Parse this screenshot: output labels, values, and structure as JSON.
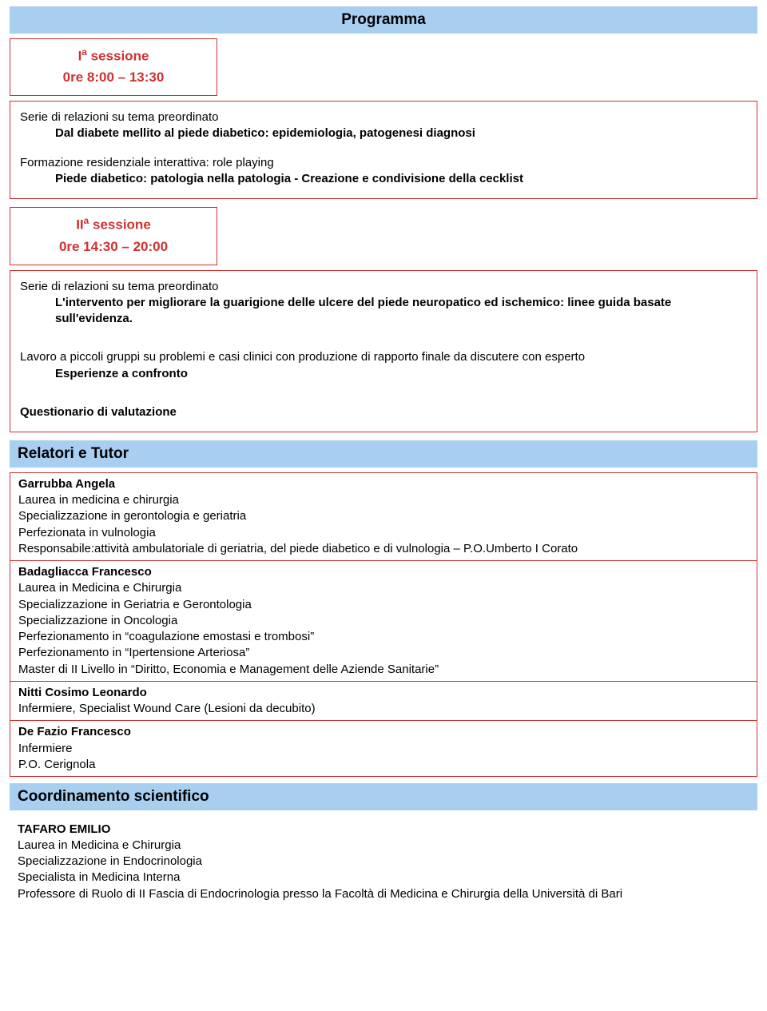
{
  "colors": {
    "header_bg": "#a8cef0",
    "border": "#cf3030",
    "session_text": "#cf3030",
    "body_text": "#000000"
  },
  "page_title": "Programma",
  "session1": {
    "label_html": "I<sup>a</sup> sessione",
    "time": "0re 8:00 – 13:30"
  },
  "box1": {
    "series": "Serie di relazioni su tema preordinato",
    "series_bold": "Dal diabete mellito al piede diabetico: epidemiologia, patogenesi diagnosi",
    "formazione": "Formazione residenziale interattiva: role playing",
    "formazione_bold": "Piede diabetico: patologia nella patologia - Creazione e condivisione della cecklist"
  },
  "session2": {
    "label_html": "II<sup>a</sup> sessione",
    "time": "0re 14:30 – 20:00"
  },
  "box2": {
    "series": "Serie di relazioni su tema preordinato",
    "series_bold": "L'intervento per migliorare la guarigione delle ulcere del piede neuropatico ed ischemico: linee guida basate sull'evidenza.",
    "lavoro": "Lavoro a piccoli gruppi su problemi e casi clinici con produzione di rapporto finale da discutere con esperto",
    "lavoro_bold": "Esperienze a confronto",
    "questionario": "Questionario di valutazione"
  },
  "relatori_title": "Relatori e Tutor",
  "relatori": [
    {
      "name": "Garrubba Angela",
      "lines": [
        "Laurea in medicina e chirurgia",
        "Specializzazione in gerontologia e geriatria",
        "Perfezionata in vulnologia",
        "Responsabile:attività ambulatoriale di geriatria, del piede diabetico e di vulnologia – P.O.Umberto I Corato"
      ]
    },
    {
      "name": "Badagliacca Francesco",
      "lines": [
        "Laurea in Medicina e Chirurgia",
        "Specializzazione in Geriatria e Gerontologia",
        "Specializzazione in Oncologia",
        "Perfezionamento in “coagulazione emostasi e trombosi”",
        "Perfezionamento in “Ipertensione Arteriosa”",
        "Master di II Livello in “Diritto, Economia e Management delle Aziende Sanitarie”"
      ]
    },
    {
      "name": "Nitti Cosimo Leonardo",
      "lines": [
        "Infermiere, Specialist Wound Care (Lesioni da decubito)"
      ]
    },
    {
      "name": "De Fazio Francesco",
      "lines": [
        "Infermiere",
        "P.O. Cerignola"
      ]
    }
  ],
  "coord_title": "Coordinamento scientifico",
  "coord": {
    "name": "TAFARO EMILIO",
    "lines": [
      "Laurea in Medicina e Chirurgia",
      "Specializzazione in Endocrinologia",
      "Specialista in Medicina Interna",
      "Professore di Ruolo di II Fascia di Endocrinologia presso la Facoltà di Medicina e Chirurgia della Università di Bari"
    ]
  }
}
